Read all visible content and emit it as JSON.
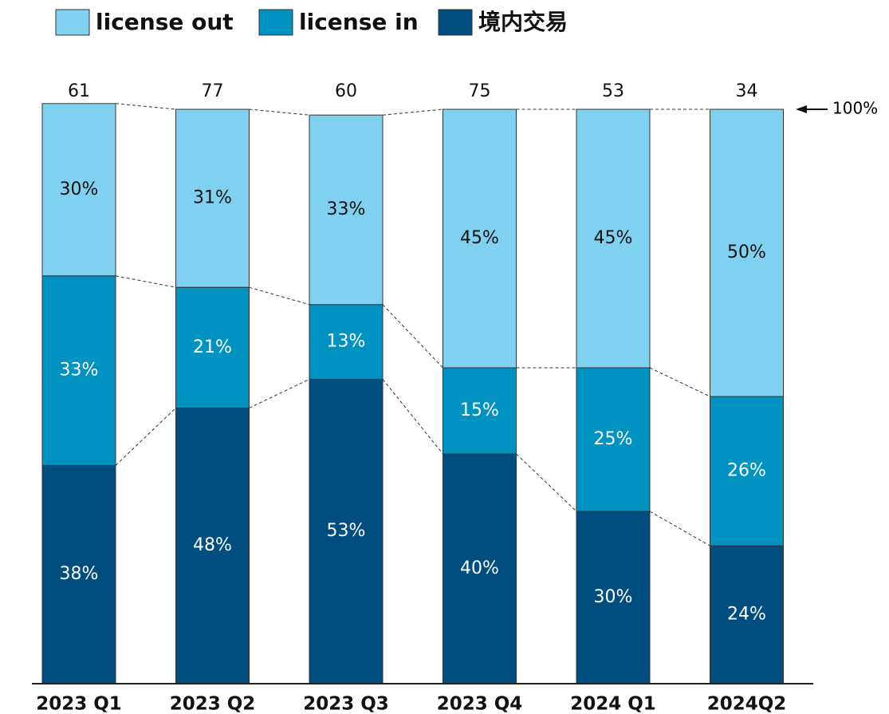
{
  "chart_data": {
    "type": "stacked_bar_100",
    "categories": [
      "2023 Q1",
      "2023 Q2",
      "2023 Q3",
      "2023 Q4",
      "2024 Q1",
      "2024Q2"
    ],
    "totals": [
      61,
      77,
      60,
      75,
      53,
      34
    ],
    "annotation": "100%",
    "ylim": [
      0,
      100
    ],
    "series": [
      {
        "name": "境内交易",
        "color": "#004e80",
        "values": [
          38,
          48,
          53,
          40,
          30,
          24
        ],
        "value_labels": [
          "38%",
          "48%",
          "53%",
          "40%",
          "30%",
          "24%"
        ]
      },
      {
        "name": "license in",
        "color": "#0092c0",
        "values": [
          33,
          21,
          13,
          15,
          25,
          26
        ],
        "value_labels": [
          "33%",
          "21%",
          "13%",
          "15%",
          "25%",
          "26%"
        ]
      },
      {
        "name": "license out",
        "color": "#80d0f0",
        "values": [
          30,
          31,
          33,
          45,
          45,
          50
        ],
        "value_labels": [
          "30%",
          "31%",
          "33%",
          "45%",
          "45%",
          "50%"
        ]
      }
    ],
    "legend_order": [
      2,
      1,
      0
    ]
  }
}
